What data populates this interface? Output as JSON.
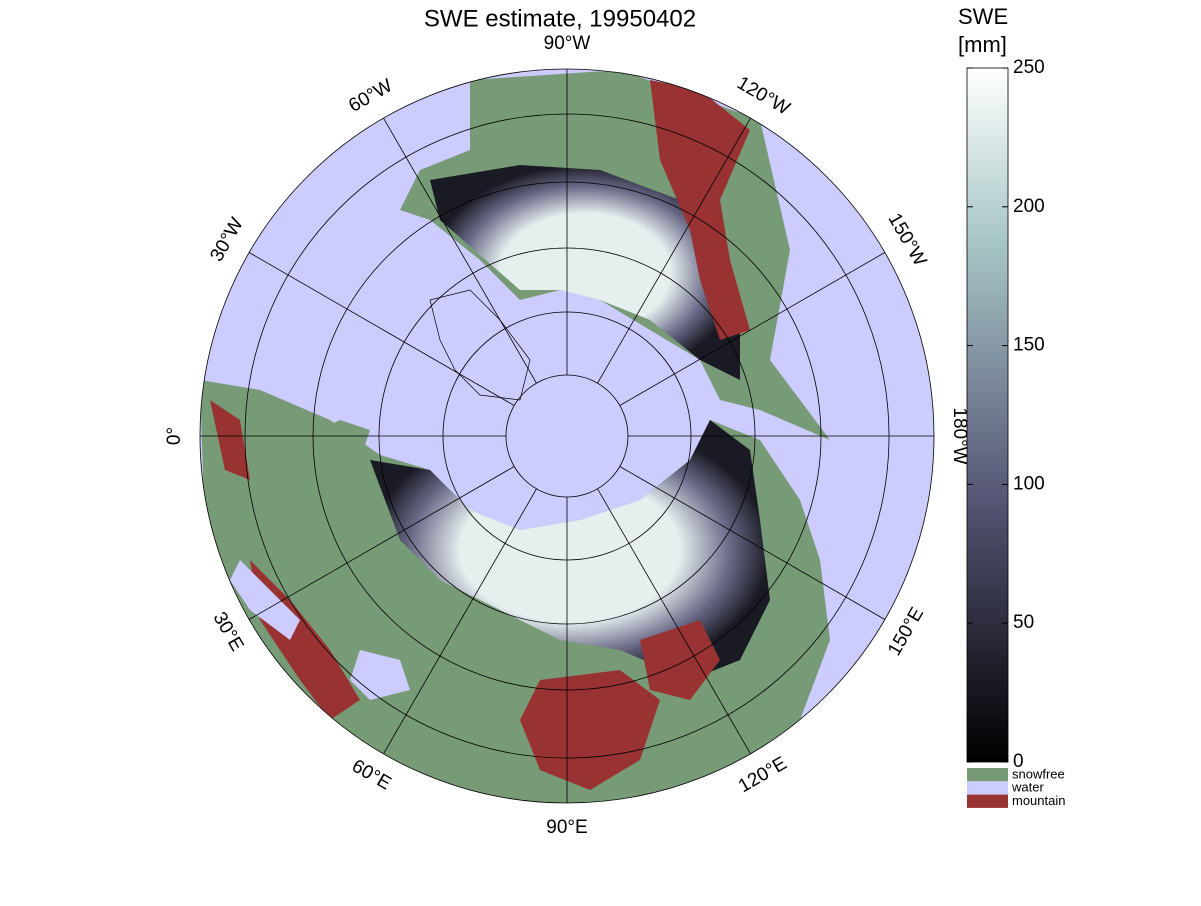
{
  "title": "SWE estimate, 19950402",
  "longitude_labels": [
    "0°",
    "30°E",
    "60°E",
    "90°E",
    "120°E",
    "150°E",
    "180°W",
    "150°W",
    "120°W",
    "90°W",
    "60°W",
    "30°W"
  ],
  "colorbar": {
    "label": [
      "SWE",
      "[mm]"
    ],
    "lim": [
      0,
      250
    ],
    "ticks": [
      0,
      50,
      100,
      150,
      200,
      250
    ]
  },
  "legend": [
    {
      "label": "snowfree",
      "color": "#779a77"
    },
    {
      "label": "water",
      "color": "#ccccff"
    },
    {
      "label": "mountain",
      "color": "#993333"
    }
  ]
}
